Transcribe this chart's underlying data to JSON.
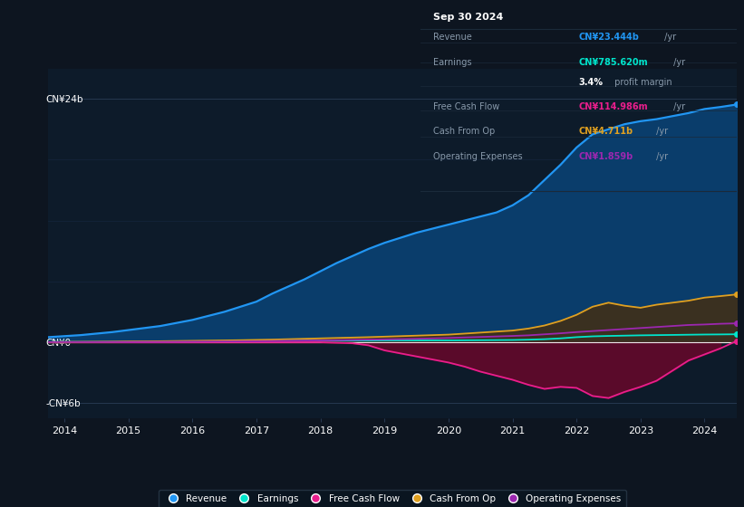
{
  "background_color": "#0d1520",
  "plot_bg_color": "#0d1b2a",
  "years": [
    2013.75,
    2014,
    2014.25,
    2014.5,
    2014.75,
    2015,
    2015.25,
    2015.5,
    2015.75,
    2016,
    2016.25,
    2016.5,
    2016.75,
    2017,
    2017.25,
    2017.5,
    2017.75,
    2018,
    2018.25,
    2018.5,
    2018.75,
    2019,
    2019.25,
    2019.5,
    2019.75,
    2020,
    2020.25,
    2020.5,
    2020.75,
    2021,
    2021.25,
    2021.5,
    2021.75,
    2022,
    2022.25,
    2022.5,
    2022.75,
    2023,
    2023.25,
    2023.5,
    2023.75,
    2024,
    2024.25,
    2024.5
  ],
  "revenue": [
    0.5,
    0.6,
    0.7,
    0.85,
    1.0,
    1.2,
    1.4,
    1.6,
    1.9,
    2.2,
    2.6,
    3.0,
    3.5,
    4.0,
    4.8,
    5.5,
    6.2,
    7.0,
    7.8,
    8.5,
    9.2,
    9.8,
    10.3,
    10.8,
    11.2,
    11.6,
    12.0,
    12.4,
    12.8,
    13.5,
    14.5,
    16.0,
    17.5,
    19.2,
    20.5,
    21.0,
    21.5,
    21.8,
    22.0,
    22.3,
    22.6,
    23.0,
    23.2,
    23.44
  ],
  "earnings": [
    0.02,
    0.03,
    0.03,
    0.03,
    0.04,
    0.04,
    0.05,
    0.05,
    0.06,
    0.07,
    0.08,
    0.09,
    0.1,
    0.11,
    0.12,
    0.13,
    0.14,
    0.15,
    0.15,
    0.16,
    0.16,
    0.17,
    0.17,
    0.17,
    0.18,
    0.18,
    0.19,
    0.2,
    0.21,
    0.22,
    0.25,
    0.3,
    0.38,
    0.5,
    0.58,
    0.62,
    0.65,
    0.68,
    0.7,
    0.72,
    0.74,
    0.76,
    0.77,
    0.786
  ],
  "free_cash_flow": [
    0.0,
    0.0,
    0.0,
    0.0,
    0.0,
    0.0,
    0.0,
    0.0,
    0.0,
    0.0,
    0.0,
    0.0,
    0.0,
    0.0,
    0.0,
    0.0,
    0.0,
    0.0,
    -0.05,
    -0.1,
    -0.3,
    -0.8,
    -1.1,
    -1.4,
    -1.7,
    -2.0,
    -2.4,
    -2.9,
    -3.3,
    -3.7,
    -4.2,
    -4.6,
    -4.4,
    -4.5,
    -5.3,
    -5.5,
    -4.9,
    -4.4,
    -3.8,
    -2.8,
    -1.8,
    -1.2,
    -0.6,
    0.115
  ],
  "cash_from_op": [
    0.02,
    0.03,
    0.04,
    0.05,
    0.06,
    0.08,
    0.09,
    0.1,
    0.12,
    0.14,
    0.16,
    0.18,
    0.2,
    0.23,
    0.26,
    0.3,
    0.34,
    0.38,
    0.42,
    0.46,
    0.5,
    0.55,
    0.6,
    0.65,
    0.7,
    0.75,
    0.85,
    0.95,
    1.05,
    1.15,
    1.35,
    1.65,
    2.1,
    2.7,
    3.5,
    3.9,
    3.6,
    3.4,
    3.7,
    3.9,
    4.1,
    4.4,
    4.55,
    4.711
  ],
  "operating_expenses": [
    0.01,
    0.02,
    0.02,
    0.02,
    0.03,
    0.03,
    0.04,
    0.04,
    0.05,
    0.06,
    0.07,
    0.08,
    0.09,
    0.1,
    0.12,
    0.14,
    0.16,
    0.18,
    0.2,
    0.23,
    0.26,
    0.28,
    0.31,
    0.34,
    0.38,
    0.42,
    0.47,
    0.52,
    0.57,
    0.62,
    0.68,
    0.78,
    0.88,
    1.0,
    1.1,
    1.2,
    1.3,
    1.4,
    1.5,
    1.6,
    1.7,
    1.75,
    1.82,
    1.859
  ],
  "revenue_color": "#2196f3",
  "earnings_color": "#00e5cc",
  "free_cash_flow_color": "#e91e8c",
  "cash_from_op_color": "#e0a020",
  "operating_expenses_color": "#9c27b0",
  "revenue_fill_color": "#0a3d6b",
  "free_cash_flow_fill_color": "#5a0a2a",
  "cash_from_op_fill_color": "#3a3020",
  "ylim_min": -7.5,
  "ylim_max": 27.0,
  "ytick_labels": [
    "CN¥24b",
    "CN¥0",
    "-CN¥6b"
  ],
  "ytick_values": [
    24,
    0,
    -6
  ],
  "xlabel_years": [
    "2014",
    "2015",
    "2016",
    "2017",
    "2018",
    "2019",
    "2020",
    "2021",
    "2022",
    "2023",
    "2024"
  ],
  "grid_color": "#1e3050",
  "grid_color2": "#263850",
  "text_color": "#8899aa",
  "white_color": "#ffffff",
  "info_box_bg": "#050e18",
  "info_box": {
    "title": "Sep 30 2024",
    "rows": [
      {
        "label": "Revenue",
        "value": "CN¥23.444b",
        "unit": " /yr",
        "value_color": "#2196f3"
      },
      {
        "label": "Earnings",
        "value": "CN¥785.620m",
        "unit": " /yr",
        "value_color": "#00e5cc"
      },
      {
        "label": "",
        "value": "3.4%",
        "unit": " profit margin",
        "value_color": "#ffffff"
      },
      {
        "label": "Free Cash Flow",
        "value": "CN¥114.986m",
        "unit": " /yr",
        "value_color": "#e91e8c"
      },
      {
        "label": "Cash From Op",
        "value": "CN¥4.711b",
        "unit": " /yr",
        "value_color": "#e0a020"
      },
      {
        "label": "Operating Expenses",
        "value": "CN¥1.859b",
        "unit": " /yr",
        "value_color": "#9c27b0"
      }
    ]
  }
}
